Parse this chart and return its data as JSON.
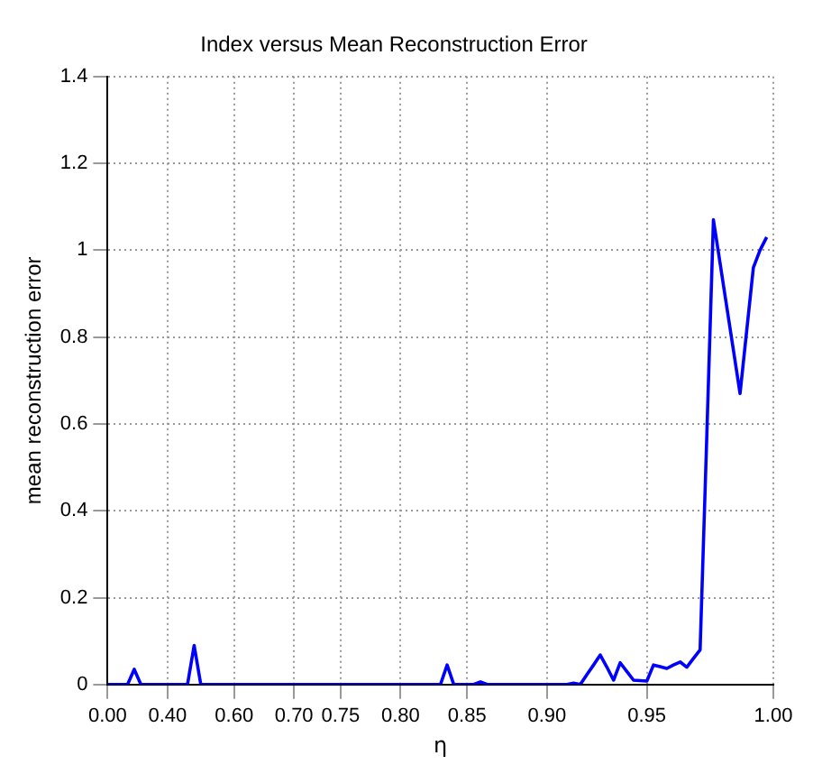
{
  "chart_data": {
    "type": "line",
    "title": "Index versus Mean Reconstruction Error",
    "xlabel": "η",
    "ylabel": "mean reconstruction error",
    "categories": [
      "0.00",
      null,
      null,
      null,
      null,
      null,
      null,
      null,
      null,
      "0.40",
      null,
      null,
      null,
      null,
      null,
      null,
      null,
      null,
      null,
      "0.60",
      null,
      null,
      null,
      null,
      null,
      null,
      null,
      null,
      "0.70",
      null,
      null,
      null,
      null,
      null,
      null,
      "0.75",
      null,
      null,
      null,
      null,
      null,
      null,
      null,
      null,
      "0.80",
      null,
      null,
      null,
      null,
      null,
      null,
      null,
      null,
      null,
      "0.85",
      null,
      null,
      null,
      null,
      null,
      null,
      null,
      null,
      null,
      null,
      null,
      "0.90",
      null,
      null,
      null,
      null,
      null,
      null,
      null,
      null,
      null,
      null,
      null,
      null,
      null,
      null,
      "0.95",
      null,
      null,
      null,
      null,
      null,
      null,
      null,
      null,
      null,
      null,
      null,
      null,
      null,
      null,
      null,
      null,
      null,
      null,
      "1.00"
    ],
    "series": [
      {
        "color": "#0000ff",
        "values": [
          0,
          0,
          0,
          0,
          0.035,
          0,
          0,
          0,
          0,
          0,
          0,
          0,
          0,
          0.09,
          0,
          0,
          0,
          0,
          0,
          0,
          0,
          0,
          0,
          0,
          0,
          0,
          0,
          0,
          0,
          0,
          0,
          0,
          0,
          0,
          0,
          0,
          0,
          0,
          0,
          0,
          0,
          0,
          0,
          0,
          0,
          0,
          0,
          0,
          0,
          0,
          0,
          0.045,
          0,
          0,
          0,
          0,
          0.006,
          0,
          0,
          0,
          0,
          0,
          0,
          0,
          0,
          0,
          0,
          0,
          0,
          0,
          0.003,
          0,
          0.023,
          0.045,
          0.068,
          0.04,
          0.01,
          0.05,
          0.03,
          0.01,
          0.009,
          0.008,
          0.045,
          0.041,
          0.037,
          0.045,
          0.052,
          0.04,
          0.06,
          0.08,
          0.57,
          1.07,
          0.97,
          0.87,
          0.77,
          0.67,
          0.815,
          0.96,
          1.0,
          1.03,
          null
        ]
      }
    ],
    "ylim": [
      0,
      1.4
    ],
    "yticks": [
      0,
      0.2,
      0.4,
      0.6,
      0.8,
      1,
      1.2,
      1.4
    ],
    "grid": true,
    "legend": false,
    "marker": "none",
    "line_style": "solid"
  }
}
